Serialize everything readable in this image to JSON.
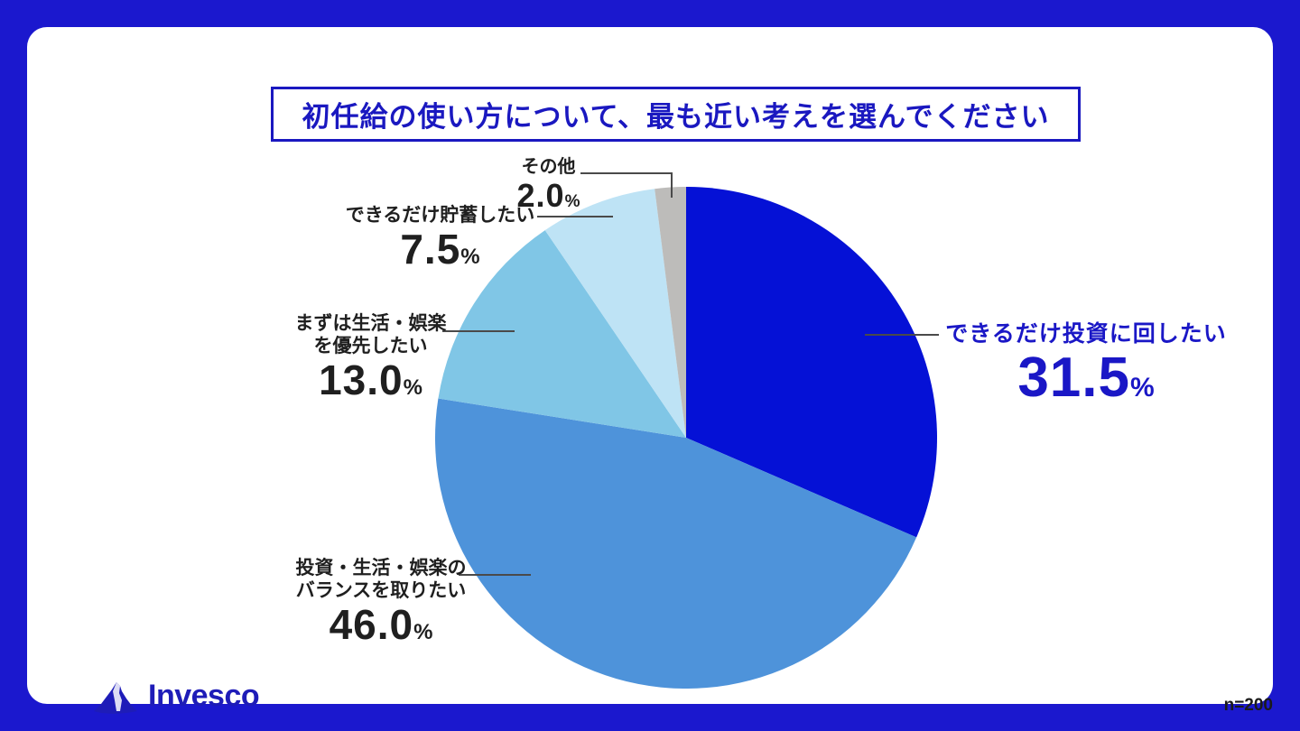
{
  "frame": {
    "border_color": "#1B18CE",
    "card_color": "#FFFFFF"
  },
  "title": {
    "text": "初任給の使い方について、最も近い考えを選んでください"
  },
  "chart_data": {
    "type": "pie",
    "title": "初任給の使い方について、最も近い考えを選んでください",
    "start_angle_deg": 0,
    "direction": "clockwise",
    "sample_size": 200,
    "slices": [
      {
        "label": "できるだけ投資に回したい",
        "value": 31.5,
        "display_value": "31.5",
        "unit": "%",
        "color": "#0511D6",
        "callout_label": "できるだけ投資に回したい",
        "text_color": "#1A17C6"
      },
      {
        "label": "投資・生活・娯楽のバランスを取りたい",
        "value": 46.0,
        "display_value": "46.0",
        "unit": "%",
        "color": "#4E93DA",
        "callout_label": "投資・生活・娯楽の\nバランスを取りたい",
        "text_color": "#1F1F1F"
      },
      {
        "label": "まずは生活・娯楽を優先したい",
        "value": 13.0,
        "display_value": "13.0",
        "unit": "%",
        "color": "#80C6E6",
        "callout_label": "まずは生活・娯楽\nを優先したい",
        "text_color": "#1F1F1F"
      },
      {
        "label": "できるだけ貯蓄したい",
        "value": 7.5,
        "display_value": "7.5",
        "unit": "%",
        "color": "#BEE3F5",
        "callout_label": "できるだけ貯蓄したい",
        "text_color": "#1F1F1F"
      },
      {
        "label": "その他",
        "value": 2.0,
        "display_value": "2.0",
        "unit": "%",
        "color": "#BDBCBA",
        "callout_label": "その他",
        "text_color": "#1F1F1F"
      }
    ]
  },
  "footer": {
    "brand": "Invesco",
    "sample_note": "n=200"
  }
}
